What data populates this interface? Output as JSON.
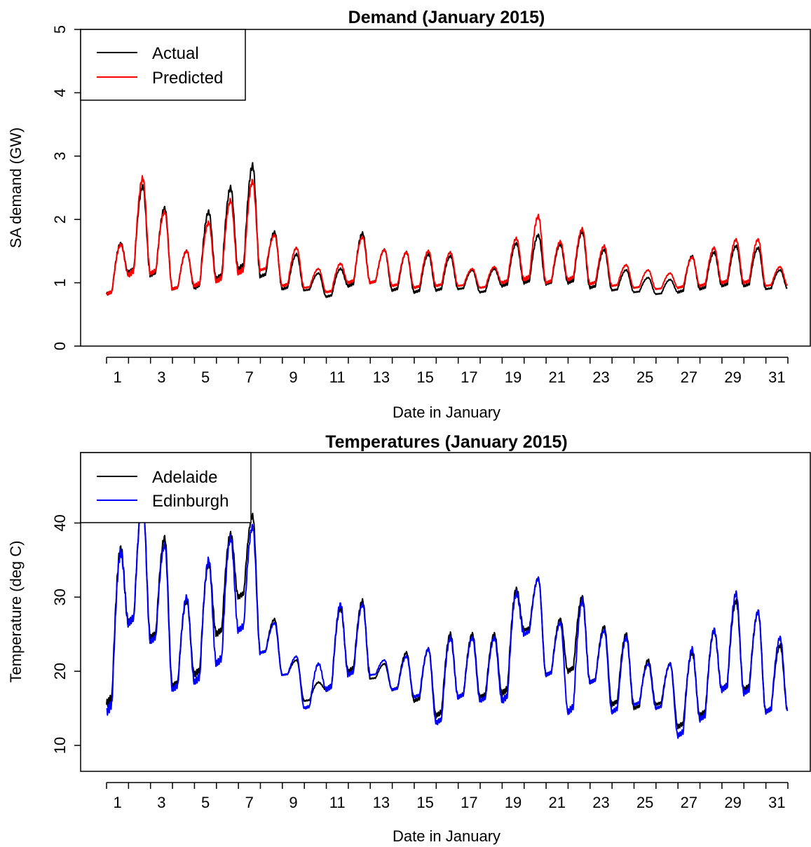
{
  "chart_data": [
    {
      "type": "line",
      "title": "Demand (January 2015)",
      "xlabel": "Date in January",
      "ylabel": "SA demand (GW)",
      "xlim": [
        0.5,
        31.5
      ],
      "ylim": [
        0,
        5
      ],
      "x_ticks": [
        1,
        3,
        5,
        7,
        9,
        11,
        13,
        15,
        17,
        19,
        21,
        23,
        25,
        27,
        29,
        31
      ],
      "y_ticks": [
        0,
        1,
        2,
        3,
        4,
        5
      ],
      "legend_position": "top-left",
      "x": [
        1,
        2,
        3,
        4,
        5,
        6,
        7,
        8,
        9,
        10,
        11,
        12,
        13,
        14,
        15,
        16,
        17,
        18,
        19,
        20,
        21,
        22,
        23,
        24,
        25,
        26,
        27,
        28,
        29,
        30,
        31
      ],
      "series": [
        {
          "name": "Actual",
          "color": "#000000",
          "daily_min": [
            0.82,
            1.15,
            1.12,
            0.9,
            0.92,
            1.05,
            1.2,
            1.1,
            0.9,
            0.88,
            0.78,
            0.95,
            1.0,
            0.88,
            0.85,
            0.88,
            0.9,
            0.85,
            0.95,
            1.0,
            0.98,
            1.0,
            0.92,
            0.88,
            0.85,
            0.82,
            0.85,
            0.9,
            0.95,
            0.95,
            0.9
          ],
          "daily_max": [
            1.62,
            2.52,
            2.18,
            1.5,
            2.12,
            2.5,
            2.85,
            1.8,
            1.45,
            1.15,
            1.22,
            1.78,
            1.52,
            1.48,
            1.45,
            1.42,
            1.2,
            1.22,
            1.62,
            1.75,
            1.6,
            1.8,
            1.52,
            1.2,
            1.08,
            1.05,
            1.42,
            1.48,
            1.58,
            1.55,
            1.2
          ]
        },
        {
          "name": "Predicted",
          "color": "#ff0000",
          "daily_min": [
            0.82,
            1.12,
            1.15,
            0.9,
            0.95,
            1.02,
            1.15,
            1.2,
            0.95,
            0.92,
            0.85,
            1.0,
            1.0,
            0.95,
            0.92,
            0.95,
            0.95,
            0.92,
            1.0,
            1.05,
            1.0,
            1.05,
            0.98,
            0.95,
            0.92,
            0.9,
            0.92,
            0.95,
            1.0,
            1.0,
            0.95
          ],
          "daily_max": [
            1.6,
            2.65,
            2.12,
            1.5,
            1.95,
            2.3,
            2.6,
            1.75,
            1.55,
            1.22,
            1.3,
            1.72,
            1.52,
            1.48,
            1.5,
            1.48,
            1.22,
            1.25,
            1.7,
            2.05,
            1.65,
            1.85,
            1.58,
            1.28,
            1.2,
            1.15,
            1.4,
            1.55,
            1.68,
            1.68,
            1.25
          ]
        }
      ]
    },
    {
      "type": "line",
      "title": "Temperatures (January 2015)",
      "xlabel": "Date in January",
      "ylabel": "Temperature (deg C)",
      "xlim": [
        0.5,
        31.5
      ],
      "ylim": [
        6.5,
        49.5
      ],
      "x_ticks": [
        1,
        3,
        5,
        7,
        9,
        11,
        13,
        15,
        17,
        19,
        21,
        23,
        25,
        27,
        29,
        31
      ],
      "y_ticks": [
        10,
        20,
        30,
        40
      ],
      "legend_position": "top-left",
      "x": [
        1,
        2,
        3,
        4,
        5,
        6,
        7,
        8,
        9,
        10,
        11,
        12,
        13,
        14,
        15,
        16,
        17,
        18,
        19,
        20,
        21,
        22,
        23,
        24,
        25,
        26,
        27,
        28,
        29,
        30,
        31
      ],
      "series": [
        {
          "name": "Adelaide",
          "color": "#000000",
          "daily_min": [
            15.5,
            26.5,
            24.5,
            18.0,
            19.5,
            25.0,
            30.0,
            22.5,
            19.5,
            16.0,
            17.5,
            20.0,
            19.0,
            17.5,
            16.0,
            14.0,
            16.5,
            16.5,
            17.0,
            25.5,
            19.5,
            20.0,
            18.5,
            15.5,
            15.0,
            15.5,
            12.5,
            14.0,
            17.5,
            17.5,
            14.5
          ],
          "daily_max": [
            36.5,
            43.0,
            38.0,
            29.5,
            34.5,
            38.5,
            41.0,
            27.0,
            21.5,
            18.5,
            28.5,
            29.5,
            21.0,
            22.5,
            23.0,
            25.0,
            25.0,
            25.0,
            31.0,
            32.5,
            27.0,
            30.0,
            26.0,
            25.0,
            21.5,
            21.0,
            22.5,
            25.5,
            29.5,
            28.0,
            23.5
          ]
        },
        {
          "name": "Edinburgh",
          "color": "#0000ff",
          "daily_min": [
            14.5,
            26.5,
            24.0,
            17.5,
            18.5,
            21.0,
            25.5,
            22.5,
            19.5,
            15.0,
            17.5,
            19.5,
            19.5,
            17.5,
            16.5,
            13.0,
            16.5,
            16.0,
            16.0,
            25.0,
            19.5,
            14.5,
            18.5,
            14.5,
            15.5,
            15.0,
            11.3,
            13.5,
            17.5,
            17.0,
            14.5
          ],
          "daily_max": [
            36.0,
            43.0,
            37.0,
            30.0,
            35.0,
            38.0,
            39.5,
            26.5,
            22.0,
            21.0,
            29.0,
            29.0,
            21.5,
            22.0,
            23.0,
            24.5,
            24.5,
            24.5,
            30.5,
            32.5,
            26.5,
            29.5,
            25.5,
            24.5,
            21.0,
            21.0,
            23.0,
            25.5,
            30.5,
            28.0,
            24.5
          ]
        }
      ]
    }
  ]
}
